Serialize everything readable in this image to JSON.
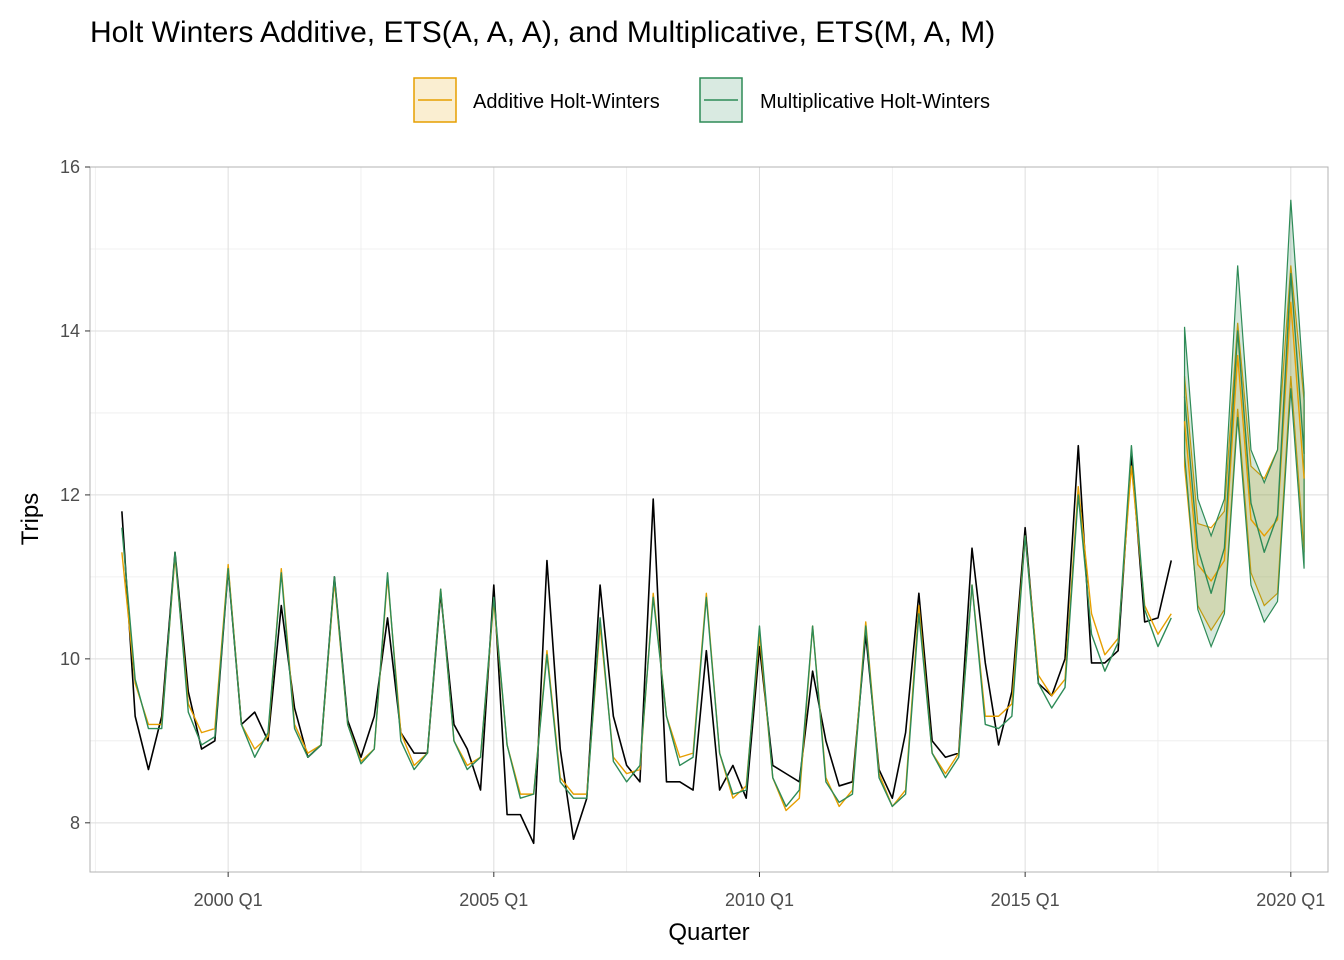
{
  "chart_data": {
    "type": "line",
    "title": "Holt Winters Additive, ETS(A, A, A), and Multiplicative, ETS(M, A, M)",
    "xlabel": "Quarter",
    "ylabel": "Trips",
    "xlim": [
      1997.4,
      2020.7
    ],
    "ylim": [
      7.4,
      16.0
    ],
    "x_ticks": [
      2000,
      2005,
      2010,
      2015,
      2020
    ],
    "x_tick_labels": [
      "2000 Q1",
      "2005 Q1",
      "2010 Q1",
      "2015 Q1",
      "2020 Q1"
    ],
    "y_ticks": [
      8,
      10,
      12,
      14,
      16
    ],
    "y_tick_labels": [
      "8",
      "10",
      "12",
      "14",
      "16"
    ],
    "grid": true,
    "legend_position": "top-center",
    "legend": [
      {
        "label": "Additive Holt-Winters",
        "color": "#E69F00"
      },
      {
        "label": "Multiplicative Holt-Winters",
        "color": "#2E8B57"
      }
    ],
    "observed": {
      "color": "#000000",
      "start": "1998 Q1",
      "values": [
        11.8,
        9.3,
        8.65,
        9.3,
        11.3,
        9.6,
        8.9,
        9.0,
        11.1,
        9.2,
        9.35,
        9.0,
        10.65,
        9.4,
        8.8,
        8.95,
        11.0,
        9.25,
        8.8,
        9.3,
        10.5,
        9.1,
        8.85,
        8.85,
        10.8,
        9.2,
        8.9,
        8.4,
        10.9,
        8.1,
        8.1,
        7.75,
        11.2,
        8.9,
        7.8,
        8.3,
        10.9,
        9.3,
        8.7,
        8.5,
        11.95,
        8.5,
        8.5,
        8.4,
        10.1,
        8.4,
        8.7,
        8.3,
        10.15,
        8.7,
        8.6,
        8.5,
        9.85,
        9.0,
        8.45,
        8.5,
        10.3,
        8.65,
        8.3,
        9.1,
        10.8,
        9.0,
        8.8,
        8.85,
        11.35,
        9.95,
        8.95,
        9.6,
        11.6,
        9.7,
        9.55,
        10.0,
        12.6,
        9.95,
        9.95,
        10.1,
        12.5,
        10.45,
        10.5,
        11.2
      ]
    },
    "additive_fitted": {
      "color": "#E69F00",
      "start": "1998 Q1",
      "values": [
        11.3,
        9.7,
        9.2,
        9.2,
        11.25,
        9.45,
        9.1,
        9.15,
        11.15,
        9.2,
        8.9,
        9.05,
        11.1,
        9.2,
        8.85,
        8.95,
        10.95,
        9.2,
        8.75,
        8.9,
        11.0,
        9.1,
        8.7,
        8.85,
        10.85,
        9.0,
        8.7,
        8.8,
        10.7,
        8.95,
        8.35,
        8.35,
        10.1,
        8.55,
        8.35,
        8.35,
        10.4,
        8.8,
        8.6,
        8.65,
        10.8,
        9.3,
        8.8,
        8.85,
        10.8,
        8.85,
        8.3,
        8.45,
        10.3,
        8.55,
        8.15,
        8.3,
        10.4,
        8.55,
        8.2,
        8.4,
        10.45,
        8.6,
        8.2,
        8.4,
        10.65,
        8.85,
        8.6,
        8.85,
        10.9,
        9.3,
        9.3,
        9.45,
        11.5,
        9.8,
        9.55,
        9.75,
        12.1,
        10.55,
        10.05,
        10.25,
        12.35,
        10.65,
        10.3,
        10.55
      ]
    },
    "multiplicative_fitted": {
      "color": "#2E8B57",
      "start": "1998 Q1",
      "values": [
        11.6,
        9.75,
        9.15,
        9.15,
        11.3,
        9.35,
        8.95,
        9.05,
        11.1,
        9.2,
        8.8,
        9.1,
        11.05,
        9.15,
        8.8,
        8.95,
        11.0,
        9.2,
        8.72,
        8.9,
        11.05,
        9.0,
        8.65,
        8.85,
        10.85,
        9.0,
        8.65,
        8.8,
        10.75,
        8.95,
        8.3,
        8.35,
        10.05,
        8.5,
        8.3,
        8.3,
        10.5,
        8.75,
        8.5,
        8.7,
        10.75,
        9.3,
        8.7,
        8.8,
        10.75,
        8.85,
        8.35,
        8.4,
        10.4,
        8.55,
        8.2,
        8.4,
        10.4,
        8.5,
        8.25,
        8.35,
        10.4,
        8.55,
        8.2,
        8.35,
        10.55,
        8.85,
        8.55,
        8.8,
        10.9,
        9.2,
        9.15,
        9.3,
        11.5,
        9.7,
        9.4,
        9.65,
        12.0,
        10.3,
        9.85,
        10.2,
        12.6,
        10.6,
        10.15,
        10.5
      ]
    },
    "additive_forecast": {
      "color": "#E69F00",
      "start": "2018 Q1",
      "mean": [
        12.9,
        11.15,
        10.95,
        11.2,
        13.7,
        11.7,
        11.5,
        11.7,
        14.35,
        12.2
      ],
      "lower": [
        12.35,
        10.65,
        10.35,
        10.6,
        13.05,
        11.05,
        10.65,
        10.8,
        13.45,
        11.3
      ],
      "upper": [
        13.45,
        11.65,
        11.6,
        11.8,
        14.1,
        12.35,
        12.2,
        12.55,
        14.8,
        13.15
      ]
    },
    "multiplicative_forecast": {
      "color": "#2E8B57",
      "start": "2018 Q1",
      "mean": [
        13.2,
        11.35,
        10.8,
        11.35,
        14.0,
        11.9,
        11.3,
        11.75,
        14.7,
        12.5
      ],
      "lower": [
        12.5,
        10.6,
        10.15,
        10.55,
        12.95,
        10.9,
        10.45,
        10.7,
        13.3,
        11.1
      ],
      "upper": [
        14.05,
        11.95,
        11.5,
        11.95,
        14.8,
        12.55,
        12.15,
        12.55,
        15.6,
        13.25
      ]
    }
  }
}
